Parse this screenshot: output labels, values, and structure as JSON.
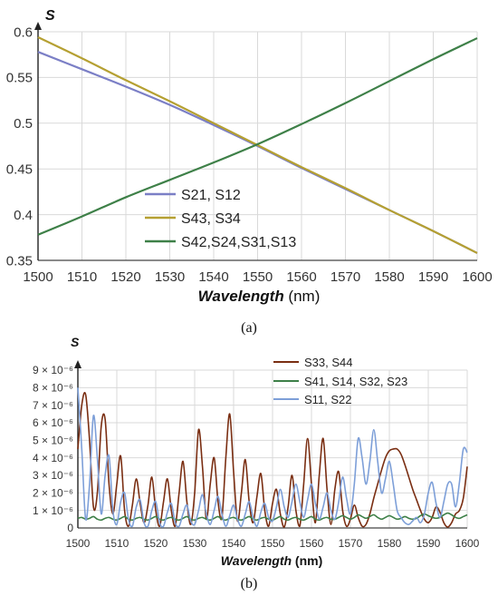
{
  "chart_data": [
    {
      "panel_label": "(a)",
      "type": "line",
      "ylabel": "S",
      "xlabel_main": "Wavelength",
      "xlabel_unit": " (nm)",
      "xlim": [
        1500,
        1600
      ],
      "ylim": [
        0.35,
        0.6
      ],
      "x_ticks": [
        1500,
        1510,
        1520,
        1530,
        1540,
        1550,
        1560,
        1570,
        1580,
        1590,
        1600
      ],
      "y_ticks": [
        0.35,
        0.4,
        0.45,
        0.5,
        0.55,
        0.6
      ],
      "y_tick_labels": [
        "0.35",
        "0.4",
        "0.45",
        "0.5",
        "0.55",
        "0.6"
      ],
      "grid": true,
      "legend_position": "lower-left",
      "series": [
        {
          "name": "S21, S12",
          "color": "#7b7fc6",
          "x": [
            1500,
            1510,
            1520,
            1530,
            1540,
            1550,
            1560,
            1570,
            1580,
            1590,
            1600
          ],
          "y": [
            0.578,
            0.559,
            0.54,
            0.52,
            0.498,
            0.475,
            0.451,
            0.428,
            0.405,
            0.382,
            0.358
          ]
        },
        {
          "name": "S43, S34",
          "color": "#b5a032",
          "x": [
            1500,
            1510,
            1520,
            1530,
            1540,
            1550,
            1560,
            1570,
            1580,
            1590,
            1600
          ],
          "y": [
            0.594,
            0.571,
            0.547,
            0.524,
            0.5,
            0.476,
            0.452,
            0.429,
            0.405,
            0.382,
            0.358
          ]
        },
        {
          "name": "S42,S24,S31,S13",
          "color": "#3e8048",
          "x": [
            1500,
            1510,
            1520,
            1530,
            1540,
            1550,
            1560,
            1570,
            1580,
            1590,
            1600
          ],
          "y": [
            0.378,
            0.398,
            0.419,
            0.438,
            0.457,
            0.477,
            0.499,
            0.522,
            0.546,
            0.57,
            0.593
          ]
        }
      ]
    },
    {
      "panel_label": "(b)",
      "type": "line",
      "ylabel": "S",
      "xlabel_main": "Wavelength",
      "xlabel_unit": " (nm)",
      "xlim": [
        1500,
        1600
      ],
      "ylim": [
        0,
        9
      ],
      "y_unit": "1e-6",
      "x_ticks": [
        1500,
        1510,
        1520,
        1530,
        1540,
        1550,
        1560,
        1570,
        1580,
        1590,
        1600
      ],
      "y_ticks": [
        0,
        1,
        2,
        3,
        4,
        5,
        6,
        7,
        8,
        9
      ],
      "y_tick_labels": [
        "0",
        "1 × 10⁻⁶",
        "2 × 10⁻⁶",
        "3 × 10⁻⁶",
        "4 × 10⁻⁶",
        "5 × 10⁻⁶",
        "6 × 10⁻⁶",
        "7 × 10⁻⁶",
        "8 × 10⁻⁶",
        "9 × 10⁻⁶"
      ],
      "grid": true,
      "legend_position": "top-right",
      "series": [
        {
          "name": "S33, S44",
          "color": "#7a2e12",
          "x": [
            1500,
            1501,
            1502,
            1503,
            1504,
            1505,
            1506,
            1507,
            1508,
            1509,
            1510,
            1511,
            1512,
            1513,
            1514,
            1515,
            1516,
            1517,
            1518,
            1519,
            1520,
            1521,
            1522,
            1523,
            1524,
            1525,
            1526,
            1527,
            1528,
            1529,
            1530,
            1531,
            1532,
            1533,
            1534,
            1535,
            1536,
            1537,
            1538,
            1539,
            1540,
            1541,
            1542,
            1543,
            1544,
            1545,
            1546,
            1547,
            1548,
            1549,
            1550,
            1551,
            1552,
            1553,
            1554,
            1555,
            1556,
            1557,
            1558,
            1559,
            1560,
            1561,
            1562,
            1563,
            1564,
            1565,
            1566,
            1567,
            1568,
            1569,
            1570,
            1571,
            1572,
            1573,
            1574,
            1575,
            1576,
            1577,
            1578,
            1579,
            1580,
            1581,
            1582,
            1583,
            1584,
            1585,
            1586,
            1587,
            1588,
            1589,
            1590,
            1591,
            1592,
            1593,
            1594,
            1595,
            1596,
            1597,
            1598,
            1599,
            1600
          ],
          "y": [
            4.5,
            7.0,
            7.6,
            5.0,
            1.2,
            2.0,
            5.8,
            6.2,
            2.5,
            0.8,
            2.5,
            4.1,
            1.0,
            0.1,
            1.3,
            2.8,
            1.4,
            0.3,
            1.3,
            2.9,
            1.0,
            0.1,
            1.5,
            2.8,
            1.0,
            0.1,
            2.0,
            3.8,
            1.5,
            0.2,
            2.0,
            5.6,
            3.5,
            0.5,
            2.5,
            4.0,
            1.5,
            0.6,
            4.0,
            6.5,
            3.2,
            0.4,
            2.0,
            3.9,
            1.5,
            0.3,
            1.8,
            3.1,
            1.0,
            0.1,
            1.4,
            2.2,
            0.8,
            0.05,
            1.2,
            3.0,
            1.0,
            0.1,
            2.5,
            5.1,
            2.5,
            0.3,
            3.0,
            5.1,
            2.2,
            0.2,
            2.2,
            3.2,
            1.0,
            0.1,
            0.5,
            1.3,
            0.6,
            0.1,
            0.2,
            0.8,
            1.7,
            2.5,
            3.3,
            4.0,
            4.4,
            4.5,
            4.5,
            4.2,
            3.6,
            2.9,
            2.2,
            1.6,
            1.0,
            0.5,
            0.3,
            0.6,
            1.2,
            0.9,
            0.3,
            0.05,
            0.3,
            0.8,
            1.0,
            1.7,
            3.5
          ]
        },
        {
          "name": "S41, S14, S32, S23",
          "color": "#3e8048",
          "x": [
            1500,
            1501,
            1502,
            1503,
            1504,
            1505,
            1506,
            1507,
            1508,
            1509,
            1510,
            1511,
            1512,
            1513,
            1514,
            1515,
            1516,
            1517,
            1518,
            1519,
            1520,
            1521,
            1522,
            1523,
            1524,
            1525,
            1526,
            1527,
            1528,
            1529,
            1530,
            1531,
            1532,
            1533,
            1534,
            1535,
            1536,
            1537,
            1538,
            1539,
            1540,
            1541,
            1542,
            1543,
            1544,
            1545,
            1546,
            1547,
            1548,
            1549,
            1550,
            1551,
            1552,
            1553,
            1554,
            1555,
            1556,
            1557,
            1558,
            1559,
            1560,
            1561,
            1562,
            1563,
            1564,
            1565,
            1566,
            1567,
            1568,
            1569,
            1570,
            1571,
            1572,
            1573,
            1574,
            1575,
            1576,
            1577,
            1578,
            1579,
            1580,
            1581,
            1582,
            1583,
            1584,
            1585,
            1586,
            1587,
            1588,
            1589,
            1590,
            1591,
            1592,
            1593,
            1594,
            1595,
            1596,
            1597,
            1598,
            1599,
            1600
          ],
          "y": [
            0.55,
            0.6,
            0.5,
            0.55,
            0.65,
            0.5,
            0.45,
            0.55,
            0.6,
            0.5,
            0.45,
            0.55,
            0.65,
            0.5,
            0.45,
            0.55,
            0.6,
            0.5,
            0.45,
            0.55,
            0.65,
            0.5,
            0.45,
            0.55,
            0.6,
            0.5,
            0.45,
            0.55,
            0.65,
            0.5,
            0.45,
            0.55,
            0.6,
            0.5,
            0.45,
            0.55,
            0.65,
            0.5,
            0.45,
            0.55,
            0.6,
            0.5,
            0.45,
            0.55,
            0.65,
            0.5,
            0.45,
            0.55,
            0.6,
            0.5,
            0.45,
            0.55,
            0.65,
            0.5,
            0.45,
            0.55,
            0.6,
            0.5,
            0.45,
            0.55,
            0.65,
            0.5,
            0.45,
            0.55,
            0.6,
            0.5,
            0.5,
            0.6,
            0.7,
            0.6,
            0.5,
            0.6,
            0.75,
            0.65,
            0.55,
            0.65,
            0.75,
            0.6,
            0.5,
            0.6,
            0.7,
            0.6,
            0.5,
            0.55,
            0.65,
            0.55,
            0.5,
            0.55,
            0.7,
            0.8,
            0.7,
            0.6,
            0.55,
            0.6,
            0.75,
            0.85,
            0.75,
            0.6,
            0.55,
            0.65,
            0.75
          ]
        },
        {
          "name": "S11, S22",
          "color": "#7d9fd8",
          "x": [
            1500,
            1501,
            1502,
            1503,
            1504,
            1505,
            1506,
            1507,
            1508,
            1509,
            1510,
            1511,
            1512,
            1513,
            1514,
            1515,
            1516,
            1517,
            1518,
            1519,
            1520,
            1521,
            1522,
            1523,
            1524,
            1525,
            1526,
            1527,
            1528,
            1529,
            1530,
            1531,
            1532,
            1533,
            1534,
            1535,
            1536,
            1537,
            1538,
            1539,
            1540,
            1541,
            1542,
            1543,
            1544,
            1545,
            1546,
            1547,
            1548,
            1549,
            1550,
            1551,
            1552,
            1553,
            1554,
            1555,
            1556,
            1557,
            1558,
            1559,
            1560,
            1561,
            1562,
            1563,
            1564,
            1565,
            1566,
            1567,
            1568,
            1569,
            1570,
            1571,
            1572,
            1573,
            1574,
            1575,
            1576,
            1577,
            1578,
            1579,
            1580,
            1581,
            1582,
            1583,
            1584,
            1585,
            1586,
            1587,
            1588,
            1589,
            1590,
            1591,
            1592,
            1593,
            1594,
            1595,
            1596,
            1597,
            1598,
            1599,
            1600
          ],
          "y": [
            8.0,
            4.5,
            0.5,
            2.5,
            6.4,
            4.0,
            0.8,
            3.0,
            4.1,
            1.0,
            0.2,
            1.5,
            2.0,
            0.5,
            0.1,
            1.2,
            1.6,
            0.3,
            0.1,
            1.0,
            1.5,
            0.3,
            0.1,
            0.9,
            1.4,
            0.3,
            0.1,
            0.8,
            1.3,
            0.4,
            0.2,
            1.0,
            1.9,
            0.8,
            0.2,
            1.0,
            1.8,
            0.8,
            0.1,
            0.7,
            1.3,
            0.5,
            0.1,
            0.8,
            1.5,
            0.6,
            0.1,
            0.9,
            1.4,
            0.6,
            0.4,
            1.2,
            2.2,
            1.2,
            0.6,
            1.5,
            2.5,
            1.5,
            0.6,
            1.6,
            2.5,
            1.4,
            0.5,
            1.2,
            2.0,
            1.0,
            0.5,
            1.5,
            2.9,
            1.7,
            0.8,
            2.5,
            5.1,
            4.0,
            2.5,
            3.8,
            5.6,
            3.8,
            2.0,
            2.8,
            3.8,
            2.5,
            1.0,
            0.6,
            0.3,
            0.2,
            0.4,
            0.6,
            0.3,
            0.8,
            2.0,
            2.6,
            1.4,
            0.6,
            1.5,
            2.5,
            2.5,
            1.2,
            2.6,
            4.5,
            4.3
          ]
        }
      ]
    }
  ]
}
